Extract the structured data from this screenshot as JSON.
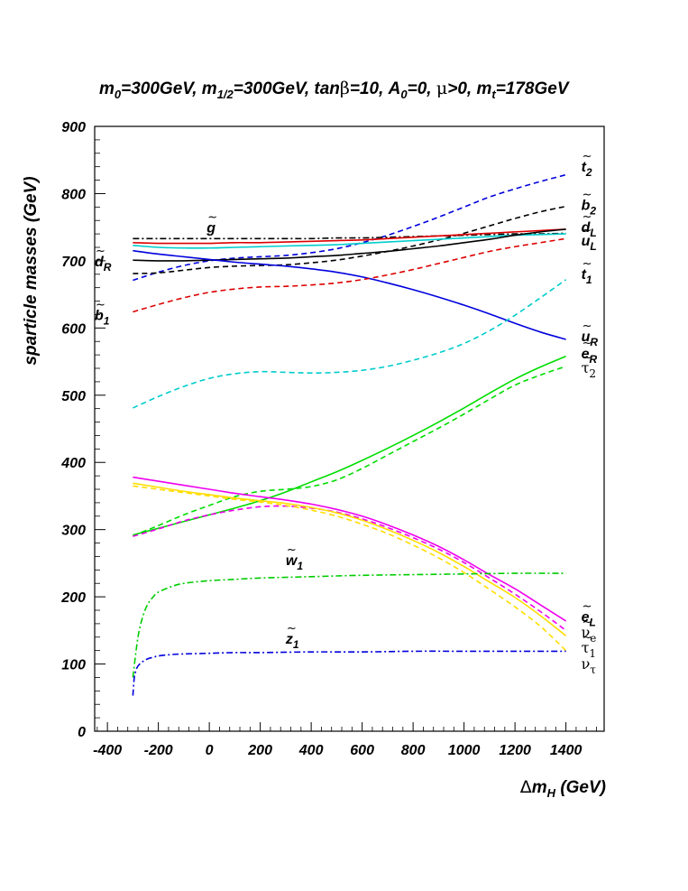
{
  "chart_data": {
    "type": "line",
    "title": "m0=300GeV, m1/2=300GeV, tanβ=10, A0=0, μ>0, mt=178GeV",
    "title_parts": {
      "m0": "m",
      "m0_sub": "0",
      "m0_val": "=300GeV, ",
      "m12": "m",
      "m12_sub": "1/2",
      "m12_val": "=300GeV, tan",
      "beta": "β",
      "beta_val": "=10, A",
      "a0_sub": "0",
      "a0_val": "=0, ",
      "mu": "μ",
      "mu_val": ">0, m",
      "mt_sub": "t",
      "mt_val": "=178GeV"
    },
    "xlabel": "Δm_H (GeV)",
    "xlabel_parts": {
      "delta": "Δ",
      "m": "m",
      "sub": "H",
      "unit": " (GeV)"
    },
    "ylabel": "sparticle masses (GeV)",
    "xlim": [
      -450,
      1550
    ],
    "ylim": [
      0,
      900
    ],
    "x_ticks": [
      -400,
      -200,
      0,
      200,
      400,
      600,
      800,
      1000,
      1200,
      1400
    ],
    "y_ticks": [
      0,
      100,
      200,
      300,
      400,
      500,
      600,
      700,
      800,
      900
    ],
    "grid": false,
    "legend": "none",
    "x": [
      -300,
      -200,
      -100,
      0,
      100,
      200,
      300,
      400,
      500,
      600,
      700,
      800,
      900,
      1000,
      1100,
      1200,
      1300,
      1400
    ],
    "series": [
      {
        "name": "t2",
        "color": "#0000dd",
        "dash": "dashed",
        "values": [
          671,
          683,
          693,
          700,
          704,
          706,
          708,
          712,
          718,
          727,
          738,
          751,
          765,
          780,
          795,
          807,
          818,
          828
        ]
      },
      {
        "name": "b2",
        "color": "#000000",
        "dash": "dashed",
        "values": [
          681,
          682,
          686,
          690,
          692,
          693,
          694,
          697,
          701,
          707,
          714,
          722,
          731,
          741,
          752,
          763,
          773,
          781
        ]
      },
      {
        "name": "gluino",
        "color": "#000000",
        "dash": "dashdot",
        "values": [
          733,
          733,
          733,
          733,
          733,
          733,
          733,
          733,
          734,
          734,
          735,
          736,
          737,
          738,
          739,
          740,
          740,
          741
        ]
      },
      {
        "name": "red-solid",
        "color": "#dd0000",
        "dash": "solid",
        "values": [
          727,
          726,
          726,
          726,
          727,
          727,
          728,
          729,
          730,
          731,
          733,
          735,
          737,
          739,
          741,
          743,
          745,
          747
        ]
      },
      {
        "name": "cyan-solid",
        "color": "#00cccc",
        "dash": "solid",
        "values": [
          723,
          720,
          719,
          719,
          720,
          721,
          722,
          723,
          724,
          726,
          728,
          730,
          732,
          734,
          736,
          738,
          739,
          740
        ]
      },
      {
        "name": "dR",
        "color": "#000000",
        "dash": "solid",
        "values": [
          701,
          700,
          700,
          701,
          702,
          703,
          704,
          706,
          708,
          711,
          714,
          718,
          722,
          727,
          732,
          738,
          743,
          747
        ]
      },
      {
        "name": "uR",
        "color": "#0000dd",
        "dash": "solid",
        "values": [
          715,
          710,
          706,
          702,
          698,
          695,
          692,
          688,
          683,
          676,
          667,
          657,
          646,
          634,
          621,
          607,
          594,
          583
        ]
      },
      {
        "name": "b1",
        "color": "#dd0000",
        "dash": "dashed",
        "values": [
          624,
          635,
          645,
          653,
          658,
          661,
          662,
          664,
          667,
          672,
          679,
          687,
          696,
          705,
          714,
          721,
          727,
          733
        ]
      },
      {
        "name": "t1",
        "color": "#00cccc",
        "dash": "dashed",
        "values": [
          481,
          498,
          513,
          525,
          532,
          535,
          534,
          533,
          534,
          537,
          543,
          552,
          563,
          577,
          596,
          619,
          645,
          672
        ]
      },
      {
        "name": "eR",
        "color": "#00dd00",
        "dash": "solid",
        "values": [
          292,
          302,
          312,
          322,
          332,
          343,
          356,
          371,
          386,
          403,
          421,
          440,
          460,
          481,
          503,
          524,
          542,
          558
        ]
      },
      {
        "name": "tau2",
        "color": "#00dd00",
        "dash": "dashed",
        "values": [
          291,
          306,
          322,
          336,
          349,
          357,
          360,
          364,
          374,
          391,
          411,
          431,
          451,
          472,
          494,
          515,
          530,
          543
        ]
      },
      {
        "name": "eL",
        "color": "#ee00ee",
        "dash": "solid",
        "values": [
          378,
          372,
          366,
          360,
          354,
          349,
          344,
          338,
          330,
          320,
          307,
          292,
          275,
          255,
          233,
          212,
          188,
          164
        ]
      },
      {
        "name": "tau1",
        "color": "#ee00ee",
        "dash": "dashed",
        "values": [
          290,
          301,
          313,
          322,
          329,
          334,
          335,
          332,
          326,
          316,
          303,
          288,
          271,
          251,
          228,
          204,
          178,
          150
        ]
      },
      {
        "name": "nue",
        "color": "#ffdd00",
        "dash": "solid",
        "values": [
          369,
          363,
          357,
          352,
          347,
          343,
          339,
          333,
          325,
          314,
          300,
          284,
          266,
          245,
          222,
          199,
          172,
          142
        ]
      },
      {
        "name": "nutau",
        "color": "#ffdd00",
        "dash": "dashed",
        "values": [
          365,
          360,
          355,
          350,
          345,
          341,
          336,
          329,
          320,
          308,
          294,
          277,
          258,
          236,
          211,
          185,
          156,
          120
        ]
      },
      {
        "name": "w1",
        "color": "#00cc00",
        "dash": "dashdot",
        "x": [
          -300,
          -280,
          -260,
          -240,
          -220,
          -200,
          -150,
          -100,
          0,
          100,
          200,
          300,
          400,
          600,
          800,
          1000,
          1200,
          1400
        ],
        "values": [
          80,
          140,
          172,
          190,
          200,
          207,
          215,
          220,
          224,
          226,
          228,
          229,
          230,
          232,
          233,
          234,
          235,
          235
        ]
      },
      {
        "name": "z1",
        "color": "#0000dd",
        "dash": "dashdot",
        "x": [
          -300,
          -295,
          -290,
          -280,
          -260,
          -240,
          -220,
          -200,
          -150,
          -100,
          0,
          100,
          200,
          400,
          600,
          800,
          1000,
          1200,
          1400
        ],
        "values": [
          53,
          78,
          88,
          97,
          104,
          108,
          110,
          112,
          114,
          115,
          116,
          117,
          117,
          118,
          118,
          119,
          119,
          119,
          119
        ]
      }
    ],
    "annotations": [
      {
        "key": "t2",
        "text": "t",
        "sub": "2",
        "tilde": true,
        "x": 1460,
        "y": 833
      },
      {
        "key": "b2",
        "text": "b",
        "sub": "2",
        "tilde": true,
        "x": 1460,
        "y": 776
      },
      {
        "key": "dL",
        "text": "d",
        "sub": "L",
        "tilde": true,
        "x": 1460,
        "y": 743
      },
      {
        "key": "uL",
        "text": "u",
        "sub": "L",
        "tilde": true,
        "x": 1460,
        "y": 723
      },
      {
        "key": "t1",
        "text": "t",
        "sub": "1",
        "tilde": true,
        "x": 1460,
        "y": 673
      },
      {
        "key": "uR",
        "text": "u",
        "sub": "R",
        "tilde": true,
        "x": 1460,
        "y": 580
      },
      {
        "key": "eR",
        "text": "e",
        "sub": "R",
        "tilde": true,
        "x": 1460,
        "y": 555
      },
      {
        "key": "tau2",
        "text": "τ",
        "sub": "2",
        "tilde": true,
        "x": 1460,
        "y": 533,
        "greek": true
      },
      {
        "key": "eL",
        "text": "e",
        "sub": "L",
        "tilde": true,
        "x": 1460,
        "y": 163
      },
      {
        "key": "nue",
        "text": "ν",
        "sub": "e",
        "tilde": true,
        "x": 1460,
        "y": 140,
        "greek": true
      },
      {
        "key": "tau1",
        "text": "τ",
        "sub": "1",
        "tilde": true,
        "x": 1460,
        "y": 117,
        "greek": true
      },
      {
        "key": "nutau",
        "text": "ν",
        "sub": "τ",
        "tilde": false,
        "x": 1460,
        "y": 93,
        "greek": true
      },
      {
        "key": "gluino",
        "text": "g",
        "sub": "",
        "tilde": true,
        "x": -10,
        "y": 742
      },
      {
        "key": "dR",
        "text": "d",
        "sub": "R",
        "tilde": true,
        "x": -450,
        "y": 692
      },
      {
        "key": "b1",
        "text": "b",
        "sub": "1",
        "tilde": true,
        "x": -450,
        "y": 612
      },
      {
        "key": "w1",
        "text": "w",
        "sub": "1",
        "tilde": true,
        "x": 300,
        "y": 247
      },
      {
        "key": "z1",
        "text": "z",
        "sub": "1",
        "tilde": true,
        "x": 300,
        "y": 130
      }
    ]
  }
}
